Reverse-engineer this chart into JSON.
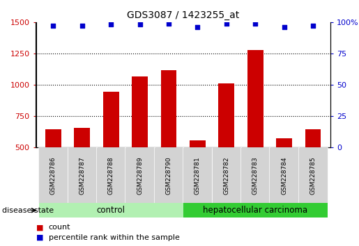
{
  "title": "GDS3087 / 1423255_at",
  "samples": [
    "GSM228786",
    "GSM228787",
    "GSM228788",
    "GSM228789",
    "GSM228790",
    "GSM228781",
    "GSM228782",
    "GSM228783",
    "GSM228784",
    "GSM228785"
  ],
  "counts": [
    645,
    660,
    945,
    1065,
    1115,
    560,
    1010,
    1275,
    575,
    645
  ],
  "percentiles": [
    97,
    97,
    98,
    98,
    99,
    96,
    99,
    99,
    96,
    97
  ],
  "groups": [
    "control",
    "control",
    "control",
    "control",
    "control",
    "hepatocellular carcinoma",
    "hepatocellular carcinoma",
    "hepatocellular carcinoma",
    "hepatocellular carcinoma",
    "hepatocellular carcinoma"
  ],
  "bar_color": "#cc0000",
  "dot_color": "#0000cc",
  "ylim_left": [
    500,
    1500
  ],
  "ylim_right": [
    0,
    100
  ],
  "yticks_left": [
    500,
    750,
    1000,
    1250,
    1500
  ],
  "yticks_right": [
    0,
    25,
    50,
    75,
    100
  ],
  "grid_values": [
    750,
    1000,
    1250
  ],
  "control_color": "#b2f0b2",
  "carcinoma_color": "#33cc33",
  "label_bg_color": "#d3d3d3",
  "disease_state_label": "disease state",
  "legend_count_label": "count",
  "legend_percentile_label": "percentile rank within the sample"
}
